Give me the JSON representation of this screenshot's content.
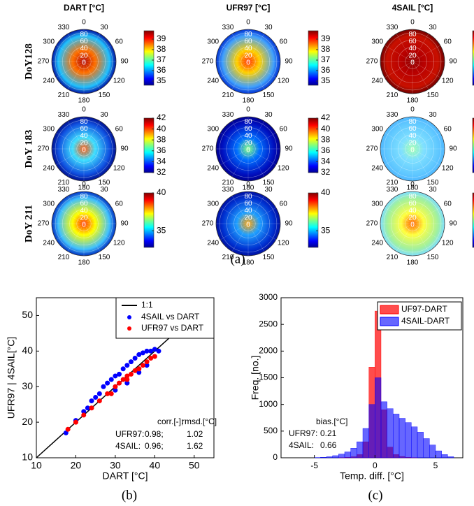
{
  "chart_data": [
    {
      "type": "polar_grid",
      "columns": [
        "DART [°C]",
        "UFR97 [°C]",
        "4SAIL [°C]"
      ],
      "rows": [
        "DoY128",
        "DoY 183",
        "DoY 211"
      ],
      "angles": [
        0,
        30,
        60,
        90,
        120,
        150,
        180,
        210,
        240,
        270,
        300,
        330
      ],
      "rlim": [
        0,
        90
      ],
      "radial_ticks": [
        80,
        60,
        40,
        20,
        0
      ],
      "colorbars": [
        {
          "lim": [
            34.6,
            39.8
          ],
          "ticks": [
            35,
            36,
            37,
            38,
            39
          ]
        },
        {
          "lim": [
            32,
            42
          ],
          "ticks": [
            32,
            34,
            36,
            38,
            40,
            42
          ]
        },
        {
          "lim": [
            32.8,
            40
          ],
          "ticks": [
            35,
            40
          ]
        }
      ],
      "caption": "(a)"
    },
    {
      "type": "scatter",
      "xlim": [
        10,
        55
      ],
      "ylim": [
        10,
        55
      ],
      "xticks": [
        10,
        20,
        30,
        40,
        50
      ],
      "yticks": [
        10,
        20,
        30,
        40,
        50
      ],
      "xlabel": "DART [°C]",
      "ylabel": "UFR97 | 4SAIL[°C]",
      "reference_line": {
        "name": "1:1",
        "color": "#000000"
      },
      "legend": "upper right",
      "series": [
        {
          "name": "4SAIL vs DART",
          "color": "#0000ff",
          "x": [
            17.5,
            20,
            22,
            23,
            24,
            25,
            26,
            27,
            28,
            29,
            30,
            31,
            32,
            33,
            34,
            35,
            36,
            37,
            38,
            39,
            40,
            41,
            30,
            33,
            36,
            38
          ],
          "y": [
            17,
            20.5,
            23,
            24,
            26,
            27,
            28,
            30,
            31,
            32,
            33,
            33.5,
            35,
            36,
            37,
            38,
            39,
            39.5,
            40,
            40,
            40.5,
            40,
            29,
            31,
            34,
            36
          ]
        },
        {
          "name": "UFR97 vs DART",
          "color": "#ff0000",
          "x": [
            18,
            20,
            22,
            24,
            26,
            28,
            30,
            31,
            32,
            33,
            34,
            35,
            36,
            37,
            38,
            39,
            40,
            29,
            33,
            36
          ],
          "y": [
            18,
            20,
            22,
            24,
            26,
            28,
            30,
            31,
            32,
            33,
            33.5,
            34.5,
            35,
            36,
            37,
            38,
            38.5,
            28,
            32,
            35
          ]
        }
      ],
      "stats_header": [
        "corr.[-];",
        "rmsd.[°C]"
      ],
      "stats": [
        {
          "label": "UFR97:",
          "corr": {
            "value": 0.98,
            "label": "0.98;"
          },
          "rmsd": 1.02
        },
        {
          "label": "4SAIL:",
          "corr": {
            "value": 0.96,
            "label": "0.96;"
          },
          "rmsd": 1.62
        }
      ],
      "caption": "(b)"
    },
    {
      "type": "histogram",
      "xlim": [
        -7.75,
        7.25
      ],
      "ylim": [
        0,
        3000
      ],
      "xticks": [
        -5,
        0,
        5
      ],
      "yticks": [
        0,
        500,
        1000,
        1500,
        2000,
        2500,
        3000
      ],
      "xlabel": "Temp. diff. [°C]",
      "ylabel": "Freq. [no.]",
      "legend": "upper right",
      "bins": [
        -6,
        -5.5,
        -5,
        -4.5,
        -4,
        -3.5,
        -3,
        -2.5,
        -2,
        -1.5,
        -1,
        -0.5,
        0,
        0.5,
        1,
        1.5,
        2,
        2.5,
        3,
        3.5,
        4,
        4.5,
        5,
        5.5,
        6,
        6.5
      ],
      "series": [
        {
          "name": "UF97-DART",
          "color": "#ff0000",
          "values": [
            0,
            0,
            0,
            0,
            0,
            0,
            5,
            10,
            20,
            60,
            300,
            1700,
            2750,
            900,
            200,
            60,
            25,
            10,
            5,
            0,
            0,
            0,
            0,
            0,
            0
          ]
        },
        {
          "name": "4SAIL-DART",
          "color": "#0000ff",
          "values": [
            0,
            0,
            5,
            10,
            20,
            40,
            70,
            110,
            180,
            300,
            550,
            1000,
            1500,
            1050,
            920,
            820,
            740,
            660,
            580,
            480,
            360,
            240,
            130,
            60,
            20
          ]
        }
      ],
      "annotation_title": "bias.[°C]",
      "bias": [
        {
          "label": "UFR97:",
          "value": 0.21
        },
        {
          "label": "4SAIL:",
          "value": 0.66
        }
      ],
      "caption": "(c)"
    }
  ]
}
